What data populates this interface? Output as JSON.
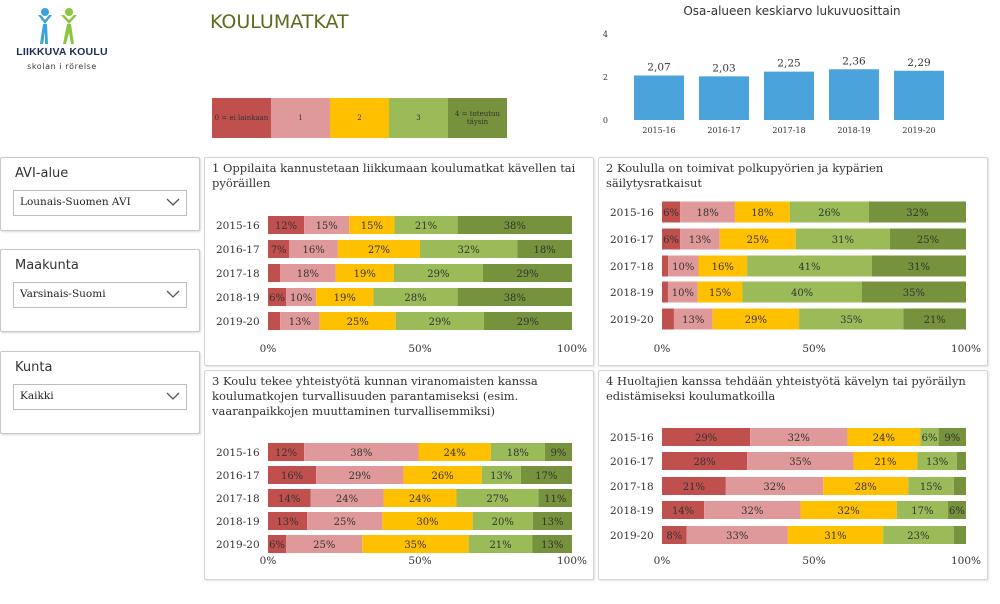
{
  "logo": {
    "name": "LIIKKUVA KOULU",
    "subtitle": "skolan i rörelse"
  },
  "page_title": "KOULUMATKAT",
  "legend": [
    {
      "label": "0 = ei lainkaan",
      "color": "#c0504d"
    },
    {
      "label": "1",
      "color": "#e0999a"
    },
    {
      "label": "2",
      "color": "#ffc000"
    },
    {
      "label": "3",
      "color": "#9bbb59"
    },
    {
      "label": "4 = toteutuu täysin",
      "color": "#76923c"
    }
  ],
  "filters": [
    {
      "label": "AVI-alue",
      "value": "Lounais-Suomen AVI"
    },
    {
      "label": "Maakunta",
      "value": "Varsinais-Suomi"
    },
    {
      "label": "Kunta",
      "value": "Kaikki"
    }
  ],
  "colors": [
    "#c0504d",
    "#e0999a",
    "#ffc000",
    "#9bbb59",
    "#76923c"
  ],
  "chart_data": [
    {
      "type": "bar",
      "title": "Osa-alueen keskiarvo lukuvuosittain",
      "categories": [
        "2015-16",
        "2016-17",
        "2017-18",
        "2018-19",
        "2019-20"
      ],
      "values": [
        2.07,
        2.03,
        2.25,
        2.36,
        2.29
      ],
      "value_labels": [
        "2,07",
        "2,03",
        "2,25",
        "2,36",
        "2,29"
      ],
      "ylim": [
        0,
        4
      ],
      "yticks": [
        "0",
        "2",
        "4"
      ],
      "color": "#4ba3dc"
    },
    {
      "type": "bar",
      "stacked": "percent",
      "title": "1 Oppilaita kannustetaan liikkumaan koulumatkat kävellen tai pyöräillen",
      "categories": [
        "2015-16",
        "2016-17",
        "2017-18",
        "2018-19",
        "2019-20"
      ],
      "values": [
        [
          12,
          15,
          15,
          21,
          38
        ],
        [
          7,
          16,
          27,
          32,
          18
        ],
        [
          4,
          18,
          19,
          29,
          29
        ],
        [
          6,
          10,
          19,
          28,
          38
        ],
        [
          4,
          13,
          25,
          29,
          29
        ]
      ],
      "labels": [
        [
          "12%",
          "15%",
          "15%",
          "21%",
          "38%"
        ],
        [
          "7%",
          "16%",
          "27%",
          "32%",
          "18%"
        ],
        [
          "",
          "18%",
          "19%",
          "29%",
          "29%"
        ],
        [
          "6%",
          "10%",
          "19%",
          "28%",
          "38%"
        ],
        [
          "",
          "13%",
          "25%",
          "29%",
          "29%"
        ]
      ],
      "xticks": [
        "0%",
        "50%",
        "100%"
      ]
    },
    {
      "type": "bar",
      "stacked": "percent",
      "title": "2 Koululla on toimivat polkupyörien ja kypärien säilytysratkaisut",
      "categories": [
        "2015-16",
        "2016-17",
        "2017-18",
        "2018-19",
        "2019-20"
      ],
      "values": [
        [
          6,
          18,
          18,
          26,
          32
        ],
        [
          6,
          13,
          25,
          31,
          25
        ],
        [
          2,
          10,
          16,
          41,
          31
        ],
        [
          2,
          10,
          15,
          40,
          35
        ],
        [
          4,
          13,
          29,
          35,
          21
        ]
      ],
      "labels": [
        [
          "6%",
          "18%",
          "18%",
          "26%",
          "32%"
        ],
        [
          "6%",
          "13%",
          "25%",
          "31%",
          "25%"
        ],
        [
          "",
          "10%",
          "16%",
          "41%",
          "31%"
        ],
        [
          "",
          "10%",
          "15%",
          "40%",
          "35%"
        ],
        [
          "",
          "13%",
          "29%",
          "35%",
          "21%"
        ]
      ],
      "xticks": [
        "0%",
        "50%",
        "100%"
      ]
    },
    {
      "type": "bar",
      "stacked": "percent",
      "title": "3 Koulu tekee yhteistyötä kunnan viranomaisten kanssa koulumatkojen turvallisuuden parantamiseksi (esim. vaaranpaikkojen muuttaminen turvallisemmiksi)",
      "categories": [
        "2015-16",
        "2016-17",
        "2017-18",
        "2018-19",
        "2019-20"
      ],
      "values": [
        [
          12,
          38,
          24,
          18,
          9
        ],
        [
          16,
          29,
          26,
          13,
          17
        ],
        [
          14,
          24,
          24,
          27,
          11
        ],
        [
          13,
          25,
          30,
          20,
          13
        ],
        [
          6,
          25,
          35,
          21,
          13
        ]
      ],
      "labels": [
        [
          "12%",
          "38%",
          "24%",
          "18%",
          "9%"
        ],
        [
          "16%",
          "29%",
          "26%",
          "13%",
          "17%"
        ],
        [
          "14%",
          "24%",
          "24%",
          "27%",
          "11%"
        ],
        [
          "13%",
          "25%",
          "30%",
          "20%",
          "13%"
        ],
        [
          "6%",
          "25%",
          "35%",
          "21%",
          "13%"
        ]
      ],
      "xticks": [
        "0%",
        "50%",
        "100%"
      ]
    },
    {
      "type": "bar",
      "stacked": "percent",
      "title": "4 Huoltajien kanssa tehdään yhteistyötä kävelyn tai pyöräilyn edistämiseksi koulumatkoilla",
      "categories": [
        "2015-16",
        "2016-17",
        "2017-18",
        "2018-19",
        "2019-20"
      ],
      "values": [
        [
          29,
          32,
          24,
          6,
          9
        ],
        [
          28,
          35,
          21,
          13,
          3
        ],
        [
          21,
          32,
          28,
          15,
          4
        ],
        [
          14,
          32,
          32,
          17,
          6
        ],
        [
          8,
          33,
          31,
          23,
          4
        ]
      ],
      "labels": [
        [
          "29%",
          "32%",
          "24%",
          "6%",
          "9%"
        ],
        [
          "28%",
          "35%",
          "21%",
          "13%",
          ""
        ],
        [
          "21%",
          "32%",
          "28%",
          "15%",
          ""
        ],
        [
          "14%",
          "32%",
          "32%",
          "17%",
          "6%"
        ],
        [
          "8%",
          "33%",
          "31%",
          "23%",
          ""
        ]
      ],
      "xticks": [
        "0%",
        "50%",
        "100%"
      ]
    }
  ]
}
